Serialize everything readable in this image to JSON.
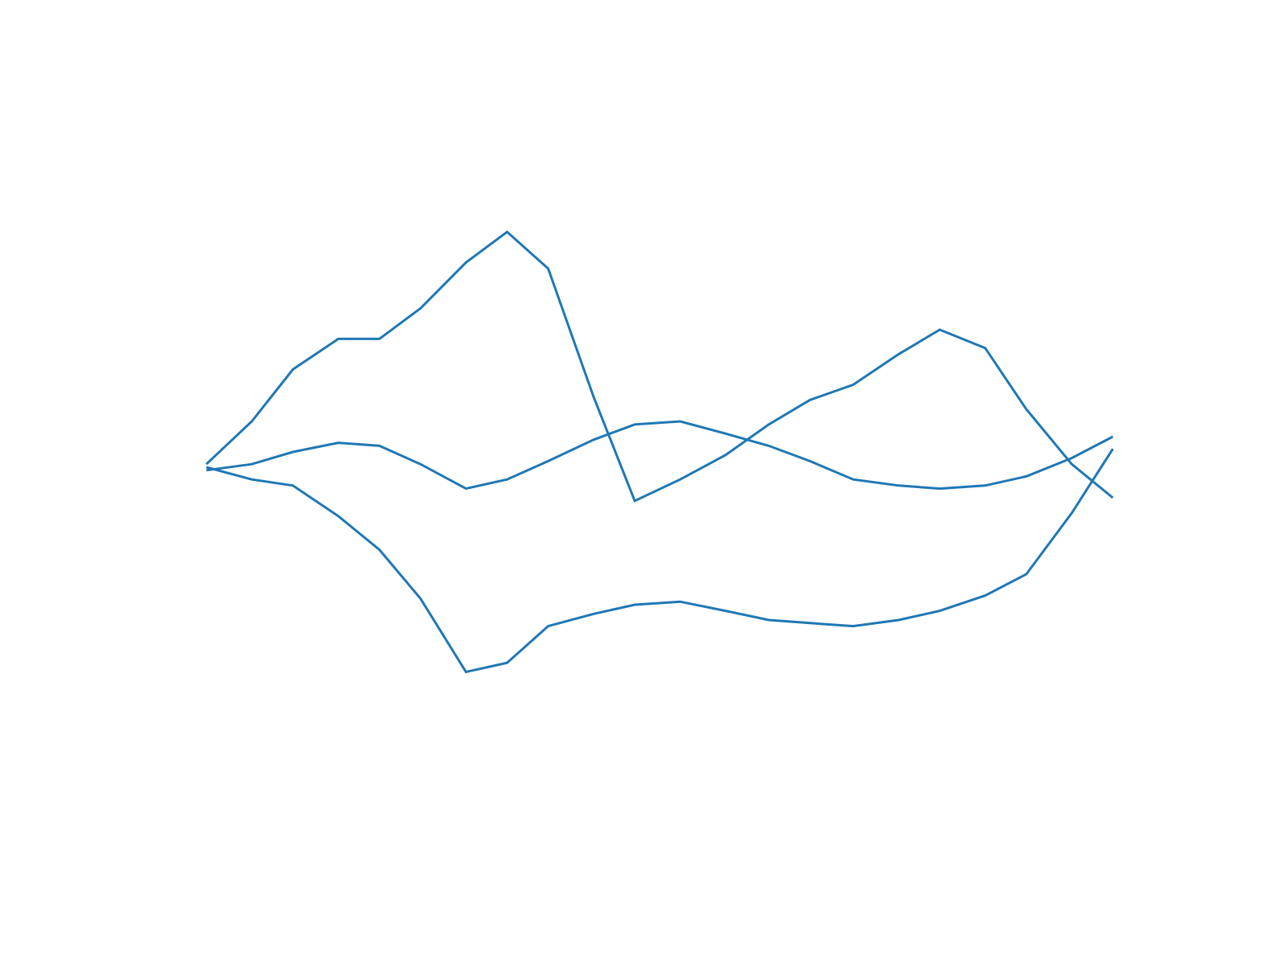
{
  "chart_data": {
    "type": "line",
    "title": "",
    "xlabel": "",
    "ylabel": "",
    "x": [
      0,
      1.05,
      2,
      3.05,
      4,
      4.95,
      6,
      6.95,
      7.9,
      8.95,
      9.9,
      10.95,
      12,
      13,
      13.95,
      14.95,
      16,
      16.95,
      18,
      18.95,
      20,
      20.95
    ],
    "xlim": [
      -1.05,
      22
    ],
    "ylim": [
      -1.2,
      1.2
    ],
    "grid": false,
    "axes_visible": false,
    "legend": "none",
    "color": "#1f77b4",
    "series": [
      {
        "values": [
          0.06,
          0.2,
          0.37,
          0.47,
          0.47,
          0.57,
          0.72,
          0.82,
          0.7,
          0.28,
          -0.06,
          0.01,
          0.09,
          0.19,
          0.27,
          0.32,
          0.42,
          0.5,
          0.44,
          0.24,
          0.06,
          -0.05
        ]
      },
      {
        "values": [
          0.04,
          0.06,
          0.1,
          0.13,
          0.12,
          0.06,
          -0.02,
          0.01,
          0.07,
          0.14,
          0.19,
          0.2,
          0.16,
          0.12,
          0.07,
          0.01,
          -0.01,
          -0.02,
          -0.01,
          0.02,
          0.08,
          0.15
        ]
      },
      {
        "values": [
          0.05,
          0.01,
          -0.01,
          -0.11,
          -0.22,
          -0.38,
          -0.62,
          -0.59,
          -0.47,
          -0.43,
          -0.4,
          -0.39,
          -0.42,
          -0.45,
          -0.46,
          -0.47,
          -0.45,
          -0.42,
          -0.37,
          -0.3,
          -0.1,
          0.11
        ]
      }
    ]
  }
}
